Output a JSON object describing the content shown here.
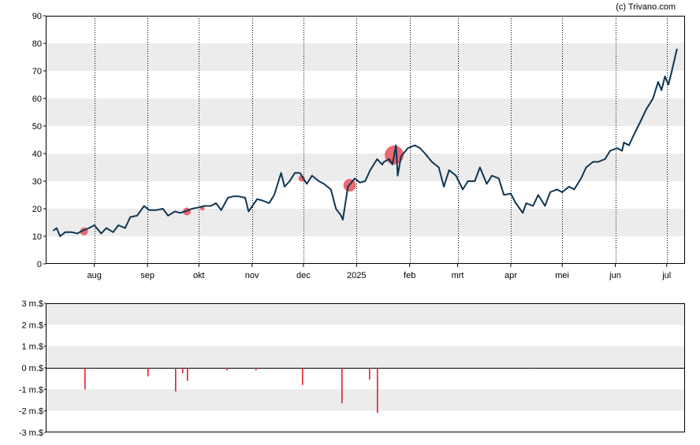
{
  "credit": "(c) Trivano.com",
  "colors": {
    "price_line": "#0d3552",
    "band": "#ececec",
    "marker": "#e8505b",
    "bar": "#e0202e",
    "grid": "#000000"
  },
  "chart_data": [
    {
      "type": "line",
      "title": "",
      "xlabel": "",
      "ylabel": "",
      "ylim": [
        0,
        90
      ],
      "grid": true,
      "x_ticks": [
        {
          "label": "aug",
          "date": "2024-08-01"
        },
        {
          "label": "sep",
          "date": "2024-09-01"
        },
        {
          "label": "okt",
          "date": "2024-10-01"
        },
        {
          "label": "nov",
          "date": "2024-11-01"
        },
        {
          "label": "dec",
          "date": "2024-12-01"
        },
        {
          "label": "2025",
          "date": "2025-01-01"
        },
        {
          "label": "feb",
          "date": "2025-02-01"
        },
        {
          "label": "mrt",
          "date": "2025-03-01"
        },
        {
          "label": "apr",
          "date": "2025-04-01"
        },
        {
          "label": "mei",
          "date": "2025-05-01"
        },
        {
          "label": "jun",
          "date": "2025-06-01"
        },
        {
          "label": "jul",
          "date": "2025-07-01"
        }
      ],
      "y_ticks": [
        0,
        10,
        20,
        30,
        40,
        50,
        60,
        70,
        80,
        90
      ],
      "series": [
        {
          "points": [
            [
              "2024-07-08",
              12
            ],
            [
              "2024-07-10",
              13
            ],
            [
              "2024-07-12",
              10
            ],
            [
              "2024-07-15",
              11.5
            ],
            [
              "2024-07-19",
              11.5
            ],
            [
              "2024-07-22",
              11
            ],
            [
              "2024-07-25",
              12
            ],
            [
              "2024-07-29",
              13
            ],
            [
              "2024-08-01",
              14
            ],
            [
              "2024-08-05",
              11
            ],
            [
              "2024-08-08",
              13
            ],
            [
              "2024-08-12",
              11.5
            ],
            [
              "2024-08-15",
              14
            ],
            [
              "2024-08-19",
              13
            ],
            [
              "2024-08-22",
              17
            ],
            [
              "2024-08-26",
              17.5
            ],
            [
              "2024-08-30",
              21
            ],
            [
              "2024-09-02",
              19.5
            ],
            [
              "2024-09-06",
              19.5
            ],
            [
              "2024-09-10",
              20
            ],
            [
              "2024-09-13",
              17.5
            ],
            [
              "2024-09-17",
              19
            ],
            [
              "2024-09-20",
              18.5
            ],
            [
              "2024-09-23",
              19
            ],
            [
              "2024-09-27",
              20
            ],
            [
              "2024-10-01",
              20.5
            ],
            [
              "2024-10-04",
              21
            ],
            [
              "2024-10-08",
              21
            ],
            [
              "2024-10-11",
              22
            ],
            [
              "2024-10-14",
              19.5
            ],
            [
              "2024-10-18",
              24
            ],
            [
              "2024-10-21",
              24.5
            ],
            [
              "2024-10-24",
              24.5
            ],
            [
              "2024-10-28",
              24
            ],
            [
              "2024-10-30",
              19
            ],
            [
              "2024-11-04",
              23.5
            ],
            [
              "2024-11-07",
              23
            ],
            [
              "2024-11-11",
              22
            ],
            [
              "2024-11-14",
              25
            ],
            [
              "2024-11-18",
              33
            ],
            [
              "2024-11-20",
              28
            ],
            [
              "2024-11-23",
              30
            ],
            [
              "2024-11-26",
              33
            ],
            [
              "2024-11-29",
              33
            ],
            [
              "2024-12-03",
              29
            ],
            [
              "2024-12-06",
              32
            ],
            [
              "2024-12-10",
              30
            ],
            [
              "2024-12-13",
              29
            ],
            [
              "2024-12-17",
              27
            ],
            [
              "2024-12-20",
              20
            ],
            [
              "2024-12-23",
              17.5
            ],
            [
              "2024-12-24",
              16
            ],
            [
              "2024-12-27",
              28
            ],
            [
              "2024-12-31",
              31
            ],
            [
              "2025-01-03",
              29.5
            ],
            [
              "2025-01-06",
              30
            ],
            [
              "2025-01-09",
              34
            ],
            [
              "2025-01-13",
              38
            ],
            [
              "2025-01-16",
              36
            ],
            [
              "2025-01-17",
              37
            ],
            [
              "2025-01-20",
              38
            ],
            [
              "2025-01-22",
              36
            ],
            [
              "2025-01-24",
              43
            ],
            [
              "2025-01-25",
              32
            ],
            [
              "2025-01-27",
              39
            ],
            [
              "2025-01-31",
              42
            ],
            [
              "2025-02-04",
              43
            ],
            [
              "2025-02-07",
              42
            ],
            [
              "2025-02-10",
              40
            ],
            [
              "2025-02-14",
              37
            ],
            [
              "2025-02-18",
              35
            ],
            [
              "2025-02-21",
              28
            ],
            [
              "2025-02-24",
              34
            ],
            [
              "2025-02-28",
              32
            ],
            [
              "2025-03-04",
              27
            ],
            [
              "2025-03-07",
              30
            ],
            [
              "2025-03-11",
              30
            ],
            [
              "2025-03-14",
              35
            ],
            [
              "2025-03-18",
              29
            ],
            [
              "2025-03-21",
              32
            ],
            [
              "2025-03-25",
              31
            ],
            [
              "2025-03-28",
              25
            ],
            [
              "2025-04-01",
              25.5
            ],
            [
              "2025-04-04",
              22
            ],
            [
              "2025-04-08",
              18.5
            ],
            [
              "2025-04-10",
              22
            ],
            [
              "2025-04-14",
              21
            ],
            [
              "2025-04-17",
              25
            ],
            [
              "2025-04-21",
              21
            ],
            [
              "2025-04-24",
              26
            ],
            [
              "2025-04-28",
              27
            ],
            [
              "2025-05-01",
              26
            ],
            [
              "2025-05-05",
              28
            ],
            [
              "2025-05-08",
              27
            ],
            [
              "2025-05-12",
              31
            ],
            [
              "2025-05-15",
              35
            ],
            [
              "2025-05-19",
              37
            ],
            [
              "2025-05-22",
              37
            ],
            [
              "2025-05-26",
              38
            ],
            [
              "2025-05-29",
              41
            ],
            [
              "2025-06-02",
              42
            ],
            [
              "2025-06-05",
              41
            ],
            [
              "2025-06-06",
              44
            ],
            [
              "2025-06-09",
              43
            ],
            [
              "2025-06-12",
              47
            ],
            [
              "2025-06-16",
              52
            ],
            [
              "2025-06-19",
              56
            ],
            [
              "2025-06-23",
              60
            ],
            [
              "2025-06-26",
              66
            ],
            [
              "2025-06-28",
              63
            ],
            [
              "2025-06-30",
              68
            ],
            [
              "2025-07-02",
              65
            ],
            [
              "2025-07-04",
              70
            ],
            [
              "2025-07-07",
              78
            ]
          ]
        }
      ],
      "markers": [
        {
          "date": "2024-07-26",
          "value": 11.8,
          "size": 5
        },
        {
          "date": "2024-09-24",
          "value": 19,
          "size": 5
        },
        {
          "date": "2024-10-03",
          "value": 20.2,
          "size": 3
        },
        {
          "date": "2024-11-30",
          "value": 31,
          "size": 4
        },
        {
          "date": "2024-12-28",
          "value": 28.5,
          "size": 8
        },
        {
          "date": "2025-01-21",
          "value": 37.2,
          "size": 3
        },
        {
          "date": "2025-01-23",
          "value": 39.5,
          "size": 12
        }
      ]
    },
    {
      "type": "bar",
      "title": "",
      "xlabel": "",
      "ylabel": "",
      "ylim": [
        -3,
        3
      ],
      "grid": true,
      "y_ticks": [
        "3 m.$",
        "2 m.$",
        "1 m.$",
        "0 m.$",
        "-1 m.$",
        "-2 m.$",
        "-3 m.$"
      ],
      "y_tick_values": [
        3,
        2,
        1,
        0,
        -1,
        -2,
        -3
      ],
      "bars": [
        {
          "date": "2024-07-26",
          "value": -1.0
        },
        {
          "date": "2024-07-31",
          "value": -0.05
        },
        {
          "date": "2024-09-01",
          "value": -0.4
        },
        {
          "date": "2024-09-04",
          "value": -0.05
        },
        {
          "date": "2024-09-17",
          "value": -1.1
        },
        {
          "date": "2024-09-21",
          "value": -0.25
        },
        {
          "date": "2024-09-24",
          "value": -0.6
        },
        {
          "date": "2024-10-17",
          "value": -0.12
        },
        {
          "date": "2024-11-03",
          "value": -0.12
        },
        {
          "date": "2024-11-30",
          "value": -0.8
        },
        {
          "date": "2024-12-23",
          "value": -1.65
        },
        {
          "date": "2025-01-08",
          "value": -0.55
        },
        {
          "date": "2025-01-13",
          "value": -2.1
        },
        {
          "date": "2025-04-13",
          "value": -0.05
        }
      ]
    }
  ]
}
